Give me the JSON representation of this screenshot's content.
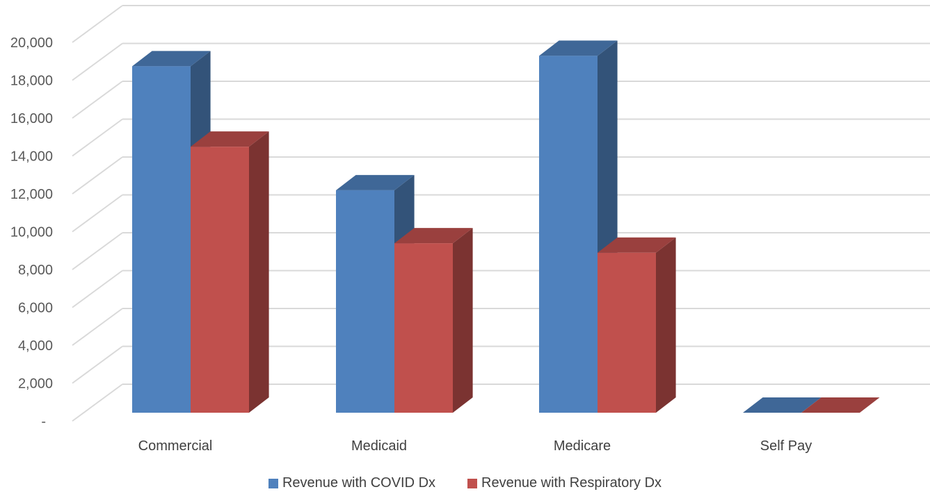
{
  "chart_data": {
    "type": "bar",
    "title": "",
    "xlabel": "",
    "ylabel": "",
    "categories": [
      "Commercial",
      "Medicaid",
      "Medicare",
      "Self Pay"
    ],
    "series": [
      {
        "name": "Revenue with COVID Dx",
        "values": [
          18300,
          11750,
          18850,
          0
        ],
        "color": "#4F81BD"
      },
      {
        "name": "Revenue with Respiratory Dx",
        "values": [
          14050,
          8950,
          8450,
          0
        ],
        "color": "#C0504D"
      }
    ],
    "ylim": [
      0,
      20000
    ],
    "y_ticks": [
      "-",
      "2,000",
      "4,000",
      "6,000",
      "8,000",
      "10,000",
      "12,000",
      "14,000",
      "16,000",
      "18,000",
      "20,000"
    ],
    "grid": true,
    "legend_position": "bottom",
    "style": "3d-clustered-column"
  }
}
